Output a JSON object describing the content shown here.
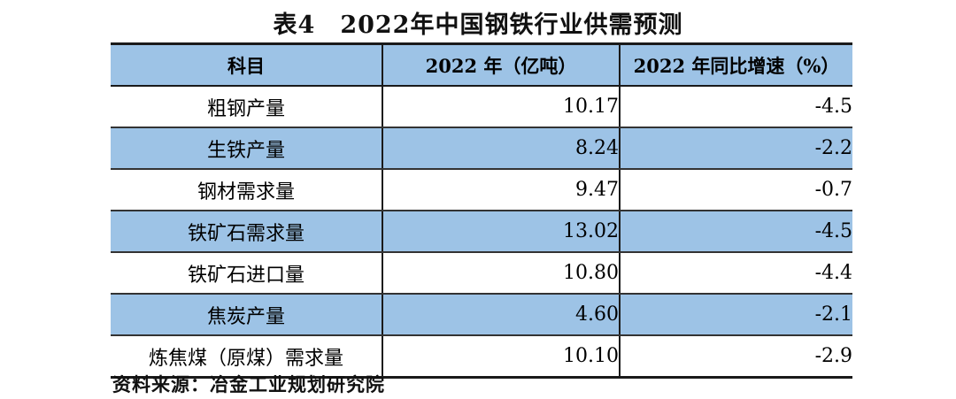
{
  "title": "表4　2022年中国钢铁行业供需预测",
  "table": {
    "headers": [
      "科目",
      "2022 年（亿吨）",
      "2022 年同比增速（%）"
    ],
    "rows": [
      {
        "item": "粗钢产量",
        "value": "10.17",
        "growth": "-4.5"
      },
      {
        "item": "生铁产量",
        "value": "8.24",
        "growth": "-2.2"
      },
      {
        "item": "钢材需求量",
        "value": "9.47",
        "growth": "-0.7"
      },
      {
        "item": "铁矿石需求量",
        "value": "13.02",
        "growth": "-4.5"
      },
      {
        "item": "铁矿石进口量",
        "value": "10.80",
        "growth": "-4.4"
      },
      {
        "item": "焦炭产量",
        "value": "4.60",
        "growth": "-2.1"
      },
      {
        "item": "炼焦煤（原煤）需求量",
        "value": "10.10",
        "growth": "-2.9"
      }
    ]
  },
  "source": "资料来源：冶金工业规划研究院",
  "colors": {
    "stripe_blue": "#9DC3E6",
    "border": "#1a1a1a",
    "text": "#000000",
    "background": "#ffffff"
  }
}
